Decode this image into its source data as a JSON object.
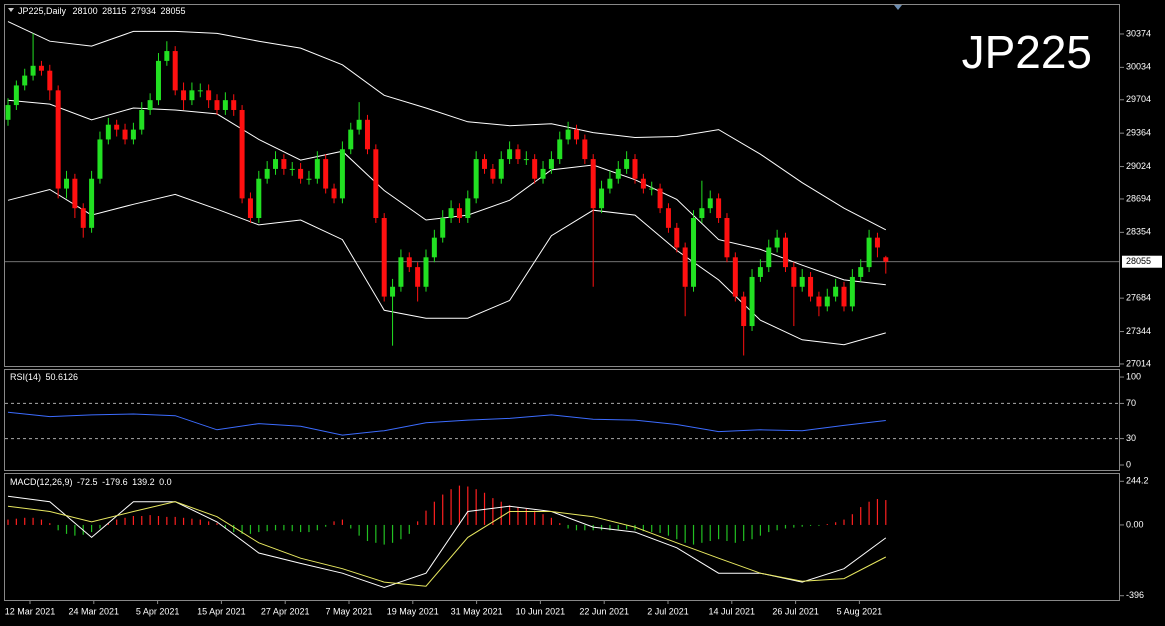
{
  "chart_data": {
    "type": "candlestick",
    "symbol_label": "JP225,Daily",
    "watermark": "JP225",
    "up_color": "#22e022",
    "down_color": "#ff1010",
    "ylim": [
      26983,
      30669
    ],
    "yticks": [
      30374,
      30034,
      29704,
      29364,
      29024,
      28694,
      28354,
      27684,
      27344,
      27014
    ],
    "candles": [
      [
        29500,
        29720,
        29440,
        29650
      ],
      [
        29650,
        29900,
        29600,
        29850
      ],
      [
        29850,
        30020,
        29800,
        29950
      ],
      [
        29950,
        30380,
        29900,
        30050
      ],
      [
        30050,
        30100,
        29950,
        30000
      ],
      [
        30000,
        30060,
        29700,
        29800
      ],
      [
        29800,
        29850,
        28700,
        28800
      ],
      [
        28800,
        28980,
        28700,
        28900
      ],
      [
        28900,
        28950,
        28500,
        28600
      ],
      [
        28600,
        28650,
        28300,
        28400
      ],
      [
        28400,
        28980,
        28350,
        28900
      ],
      [
        28900,
        29380,
        28850,
        29300
      ],
      [
        29300,
        29520,
        29250,
        29450
      ],
      [
        29450,
        29500,
        29330,
        29400
      ],
      [
        29400,
        29460,
        29250,
        29300
      ],
      [
        29300,
        29470,
        29250,
        29400
      ],
      [
        29400,
        29680,
        29350,
        29600
      ],
      [
        29600,
        29770,
        29550,
        29700
      ],
      [
        29700,
        30180,
        29650,
        30100
      ],
      [
        30100,
        30300,
        30050,
        30200
      ],
      [
        30200,
        30250,
        29750,
        29800
      ],
      [
        29800,
        29880,
        29600,
        29700
      ],
      [
        29700,
        29880,
        29650,
        29800
      ],
      [
        29800,
        29870,
        29730,
        29800
      ],
      [
        29800,
        29860,
        29620,
        29700
      ],
      [
        29700,
        29760,
        29550,
        29600
      ],
      [
        29600,
        29780,
        29550,
        29700
      ],
      [
        29700,
        29760,
        29540,
        29600
      ],
      [
        29600,
        29650,
        28650,
        28700
      ],
      [
        28700,
        28760,
        28450,
        28500
      ],
      [
        28500,
        28980,
        28450,
        28900
      ],
      [
        28900,
        29080,
        28850,
        29000
      ],
      [
        29000,
        29180,
        28940,
        29100
      ],
      [
        29100,
        29150,
        28940,
        29000
      ],
      [
        29000,
        29070,
        28930,
        29000
      ],
      [
        29000,
        29060,
        28850,
        28900
      ],
      [
        28900,
        28980,
        28840,
        28900
      ],
      [
        28900,
        29180,
        28850,
        29100
      ],
      [
        29100,
        29150,
        28750,
        28800
      ],
      [
        28800,
        28850,
        28650,
        28700
      ],
      [
        28700,
        29280,
        28650,
        29200
      ],
      [
        29200,
        29470,
        29150,
        29400
      ],
      [
        29400,
        29680,
        29350,
        29500
      ],
      [
        29500,
        29550,
        29150,
        29200
      ],
      [
        29200,
        29250,
        28450,
        28500
      ],
      [
        28500,
        28550,
        27650,
        27700
      ],
      [
        27700,
        27880,
        27200,
        27800
      ],
      [
        27800,
        28180,
        27750,
        28100
      ],
      [
        28100,
        28150,
        27950,
        28000
      ],
      [
        28000,
        28050,
        27650,
        27800
      ],
      [
        27800,
        28180,
        27750,
        28100
      ],
      [
        28100,
        28380,
        28050,
        28300
      ],
      [
        28300,
        28580,
        28250,
        28500
      ],
      [
        28500,
        28680,
        28450,
        28600
      ],
      [
        28600,
        28650,
        28450,
        28500
      ],
      [
        28500,
        28780,
        28450,
        28700
      ],
      [
        28700,
        29180,
        28650,
        29100
      ],
      [
        29100,
        29150,
        28950,
        29000
      ],
      [
        29000,
        29050,
        28850,
        28900
      ],
      [
        28900,
        29180,
        28850,
        29100
      ],
      [
        29100,
        29280,
        29050,
        29200
      ],
      [
        29200,
        29250,
        29050,
        29100
      ],
      [
        29100,
        29180,
        29040,
        29100
      ],
      [
        29100,
        29150,
        28850,
        28900
      ],
      [
        28900,
        29080,
        28850,
        29000
      ],
      [
        29000,
        29180,
        28950,
        29100
      ],
      [
        29100,
        29380,
        29050,
        29300
      ],
      [
        29300,
        29480,
        29250,
        29400
      ],
      [
        29400,
        29450,
        29250,
        29300
      ],
      [
        29300,
        29350,
        29050,
        29100
      ],
      [
        29100,
        29150,
        27800,
        28600
      ],
      [
        28600,
        28880,
        28550,
        28800
      ],
      [
        28800,
        28980,
        28750,
        28900
      ],
      [
        28900,
        29080,
        28850,
        29000
      ],
      [
        29000,
        29180,
        28950,
        29100
      ],
      [
        29100,
        29150,
        28850,
        28900
      ],
      [
        28900,
        28950,
        28750,
        28800
      ],
      [
        28800,
        28870,
        28730,
        28800
      ],
      [
        28800,
        28850,
        28550,
        28600
      ],
      [
        28600,
        28650,
        28350,
        28400
      ],
      [
        28400,
        28450,
        28150,
        28200
      ],
      [
        28200,
        28250,
        27500,
        27800
      ],
      [
        27800,
        28580,
        27750,
        28500
      ],
      [
        28500,
        28880,
        28450,
        28600
      ],
      [
        28600,
        28780,
        28550,
        28700
      ],
      [
        28700,
        28750,
        28450,
        28500
      ],
      [
        28500,
        28550,
        28050,
        28100
      ],
      [
        28100,
        28150,
        27650,
        27700
      ],
      [
        27700,
        27750,
        27100,
        27400
      ],
      [
        27400,
        27980,
        27350,
        27900
      ],
      [
        27900,
        28080,
        27850,
        28000
      ],
      [
        28000,
        28280,
        27950,
        28200
      ],
      [
        28200,
        28380,
        28150,
        28300
      ],
      [
        28300,
        28350,
        27950,
        28000
      ],
      [
        28000,
        28050,
        27400,
        27800
      ],
      [
        27800,
        27980,
        27750,
        27900
      ],
      [
        27900,
        27950,
        27650,
        27700
      ],
      [
        27700,
        27750,
        27500,
        27600
      ],
      [
        27600,
        27780,
        27550,
        27700
      ],
      [
        27700,
        27880,
        27650,
        27800
      ],
      [
        27800,
        27850,
        27550,
        27600
      ],
      [
        27600,
        27980,
        27550,
        27900
      ],
      [
        27900,
        28080,
        27850,
        28000
      ],
      [
        28000,
        28380,
        27950,
        28300
      ],
      [
        28300,
        28350,
        28100,
        28200
      ],
      [
        28100,
        28115,
        27934,
        28055
      ]
    ],
    "bollinger": {
      "color": "#ffffff",
      "upper": [
        30500,
        30300,
        30250,
        30400,
        30400,
        30380,
        30300,
        30230,
        30060,
        29750,
        29620,
        29480,
        29440,
        29460,
        29370,
        29320,
        29330,
        29400,
        29150,
        28860,
        28600,
        28380
      ],
      "middle": [
        29700,
        29660,
        29500,
        29620,
        29600,
        29560,
        29300,
        29090,
        29180,
        28780,
        28480,
        28530,
        28680,
        28990,
        29040,
        28890,
        28690,
        28280,
        28180,
        28020,
        27870,
        27820
      ],
      "lower": [
        28680,
        28790,
        28530,
        28640,
        28740,
        28590,
        28430,
        28480,
        28280,
        27560,
        27480,
        27480,
        27660,
        28320,
        28580,
        28530,
        28170,
        27870,
        27460,
        27260,
        27210,
        27330
      ]
    },
    "dates": [
      "12 Mar 2021",
      "24 Mar 2021",
      "5 Apr 2021",
      "15 Apr 2021",
      "27 Apr 2021",
      "7 May 2021",
      "19 May 2021",
      "31 May 2021",
      "10 Jun 2021",
      "22 Jun 2021",
      "2 Jul 2021",
      "14 Jul 2021",
      "26 Jul 2021",
      "5 Aug 2021"
    ],
    "rsi": {
      "label": "RSI(14)",
      "color": "#3c6cff",
      "ylim": [
        -5.7,
        108
      ],
      "yticks": [
        100,
        70,
        30,
        0
      ],
      "levels": [
        70,
        30
      ],
      "values": [
        60,
        55,
        57,
        58,
        56,
        40,
        47,
        44,
        34,
        39,
        48,
        51,
        53,
        57,
        52,
        51,
        46,
        38,
        40,
        39,
        45,
        50.6126
      ]
    },
    "macd": {
      "label": "MACD(12,26,9)",
      "extra_label": "0.0",
      "ylim": [
        -420,
        285
      ],
      "yticks": [
        244.2,
        {
          "value": 0,
          "label": "0.00"
        },
        -396
      ],
      "up_color": "#ff2020",
      "down_color": "#22c022",
      "main_color": "#ffffff",
      "signal_color": "#e8e860",
      "histogram": [
        30,
        35,
        40,
        40,
        30,
        10,
        -30,
        -50,
        -60,
        -55,
        -40,
        -20,
        10,
        30,
        40,
        50,
        50,
        55,
        50,
        45,
        45,
        40,
        35,
        30,
        20,
        10,
        -20,
        -40,
        -50,
        -50,
        -40,
        -35,
        -30,
        -30,
        -35,
        -40,
        -40,
        -30,
        -10,
        20,
        30,
        -20,
        -60,
        -90,
        -100,
        -110,
        -100,
        -80,
        -50,
        20,
        80,
        130,
        170,
        200,
        220,
        215,
        200,
        180,
        150,
        130,
        110,
        100,
        90,
        80,
        60,
        40,
        10,
        -20,
        -30,
        -30,
        -30,
        -30,
        -30,
        -25,
        -25,
        -30,
        -35,
        -40,
        -45,
        -60,
        -80,
        -100,
        -110,
        -100,
        -90,
        -80,
        -90,
        -100,
        -90,
        -80,
        -60,
        -40,
        -30,
        -20,
        -15,
        -10,
        -5,
        -5,
        5,
        15,
        30,
        60,
        100,
        130,
        145,
        139.2
      ],
      "main": [
        160,
        130,
        -70,
        130,
        130,
        17,
        -157,
        -215,
        -270,
        -350,
        -270,
        75,
        105,
        75,
        -12,
        -40,
        -128,
        -270,
        -270,
        -320,
        -245,
        -72.5
      ],
      "signal": [
        105,
        75,
        17,
        75,
        130,
        46,
        -100,
        -186,
        -245,
        -320,
        -343,
        -70,
        75,
        75,
        46,
        -12,
        -100,
        -186,
        -270,
        -315,
        -300,
        -179.6
      ]
    }
  }
}
